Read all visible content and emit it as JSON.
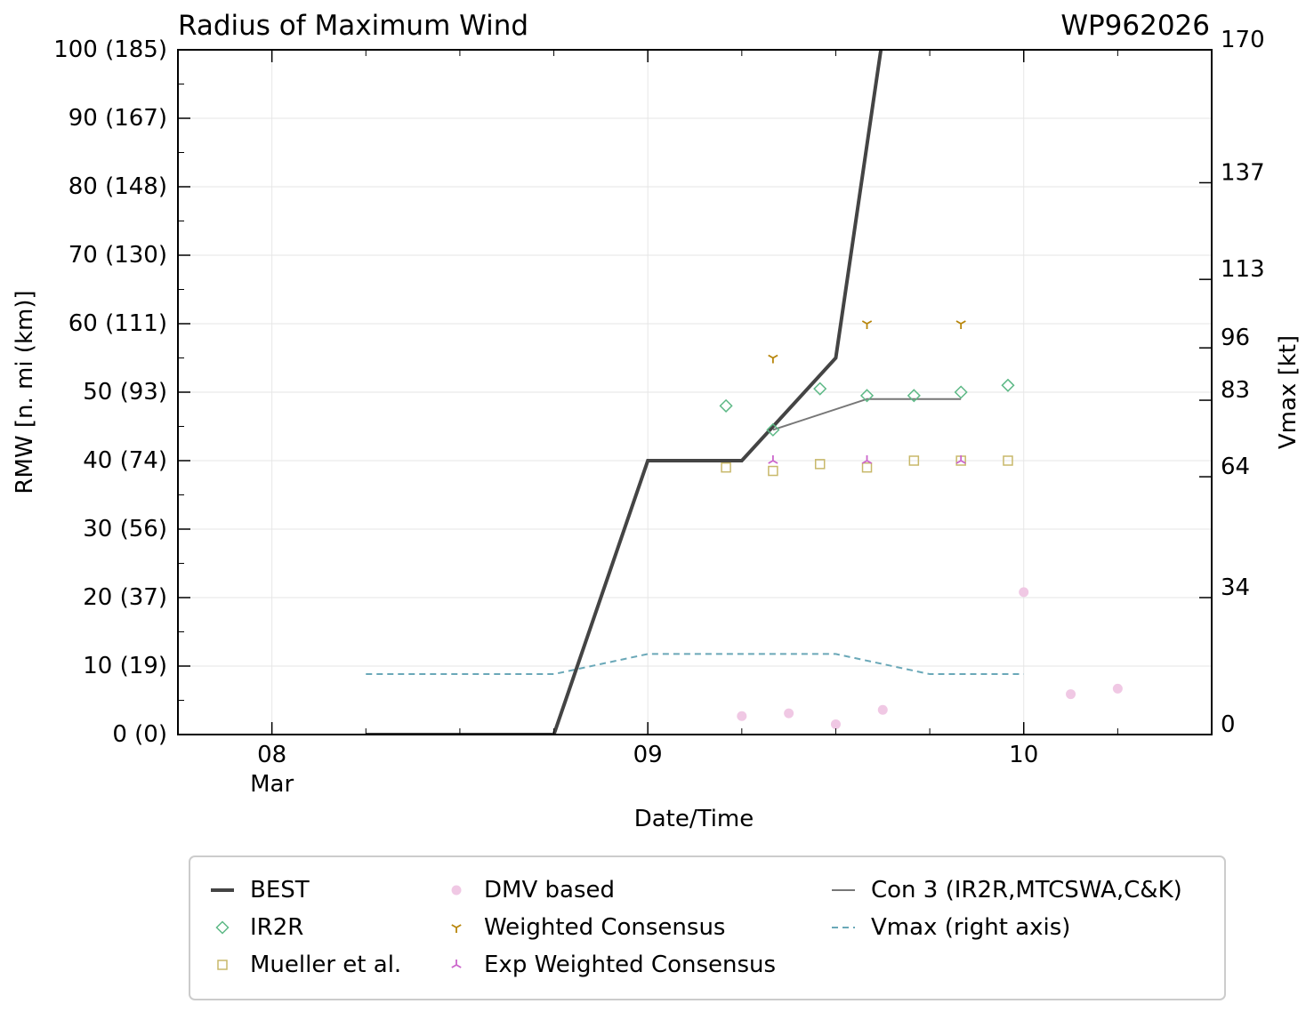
{
  "chart_data": {
    "type": "line",
    "title": "Radius of Maximum Wind",
    "storm_id": "WP962026",
    "xlabel": "Date/Time",
    "ylabel_left": "RMW [n. mi (km)]",
    "ylabel_right": "Vmax [kt]",
    "xlim": [
      -0.25,
      2.5
    ],
    "ylim": [
      0,
      100
    ],
    "vmax_lim": [
      0,
      170
    ],
    "x_unit": "days since 08 Mar 00Z",
    "x_ticks": [
      {
        "x": 0,
        "label": "08",
        "sublabel": "Mar"
      },
      {
        "x": 1,
        "label": "09",
        "sublabel": ""
      },
      {
        "x": 2,
        "label": "10",
        "sublabel": ""
      }
    ],
    "y_ticks_left": [
      {
        "v": 0,
        "label": "0 (0)"
      },
      {
        "v": 10,
        "label": "10 (19)"
      },
      {
        "v": 20,
        "label": "20 (37)"
      },
      {
        "v": 30,
        "label": "30 (56)"
      },
      {
        "v": 40,
        "label": "40 (74)"
      },
      {
        "v": 50,
        "label": "50 (93)"
      },
      {
        "v": 60,
        "label": "60 (111)"
      },
      {
        "v": 70,
        "label": "70 (130)"
      },
      {
        "v": 80,
        "label": "80 (148)"
      },
      {
        "v": 90,
        "label": "90 (167)"
      },
      {
        "v": 100,
        "label": "100 (185)"
      }
    ],
    "y_ticks_right": [
      {
        "v": 0,
        "label": "0"
      },
      {
        "v": 34,
        "label": "34"
      },
      {
        "v": 64,
        "label": "64"
      },
      {
        "v": 83,
        "label": "83"
      },
      {
        "v": 96,
        "label": "96"
      },
      {
        "v": 113,
        "label": "113"
      },
      {
        "v": 137,
        "label": "137"
      },
      {
        "v": 170,
        "label": "170"
      }
    ],
    "series": [
      {
        "name": "BEST",
        "kind": "line",
        "color": "#444444",
        "x": [
          0.25,
          0.75,
          1.0,
          1.25,
          1.5,
          1.62
        ],
        "y": [
          0,
          0,
          40,
          40,
          55,
          100
        ]
      },
      {
        "name": "IR2R",
        "kind": "marker",
        "marker": "diamond",
        "color": "#5cb885",
        "x": [
          1.208,
          1.333,
          1.458,
          1.583,
          1.708,
          1.833,
          1.958
        ],
        "y": [
          48,
          44.5,
          50.5,
          49.5,
          49.5,
          50,
          51
        ]
      },
      {
        "name": "Mueller et al.",
        "kind": "marker",
        "marker": "square",
        "color": "#c8b86a",
        "x": [
          1.208,
          1.333,
          1.458,
          1.583,
          1.708,
          1.833,
          1.958
        ],
        "y": [
          39,
          38.5,
          39.5,
          39,
          40,
          40,
          40
        ]
      },
      {
        "name": "DMV based",
        "kind": "marker",
        "marker": "circle",
        "color": "#f0c8e4",
        "x": [
          1.25,
          1.375,
          1.5,
          1.625,
          2.0,
          2.125,
          2.25
        ],
        "y": [
          2.7,
          3.1,
          1.5,
          3.6,
          20.8,
          5.9,
          6.7
        ]
      },
      {
        "name": "Weighted Consensus",
        "kind": "marker",
        "marker": "tri-down",
        "color": "#b8860b",
        "x": [
          1.333,
          1.583,
          1.833
        ],
        "y": [
          55,
          60,
          60
        ]
      },
      {
        "name": "Exp Weighted Consensus",
        "kind": "marker",
        "marker": "tri-up",
        "color": "#cc66cc",
        "x": [
          1.333,
          1.583,
          1.833
        ],
        "y": [
          40,
          40,
          40
        ]
      },
      {
        "name": "Con 3 (IR2R,MTCSWA,C&K)",
        "kind": "line",
        "color": "#777777",
        "x": [
          1.333,
          1.583,
          1.708,
          1.833
        ],
        "y": [
          44.5,
          49,
          49,
          49
        ]
      },
      {
        "name": "Vmax (right axis)",
        "kind": "dashed",
        "color": "#6aa8b8",
        "axis": "right",
        "x": [
          0.25,
          0.75,
          1.0,
          1.25,
          1.5,
          1.75,
          2.0
        ],
        "y": [
          15,
          15,
          20,
          20,
          20,
          15,
          15
        ]
      }
    ],
    "legend": {
      "placement": "bottom",
      "entries": [
        [
          "BEST",
          "IR2R",
          "Mueller et al."
        ],
        [
          "DMV based",
          "Weighted Consensus",
          "Exp Weighted Consensus"
        ],
        [
          "Con 3 (IR2R,MTCSWA,C&K)",
          "Vmax (right axis)"
        ]
      ]
    },
    "grid": true
  }
}
